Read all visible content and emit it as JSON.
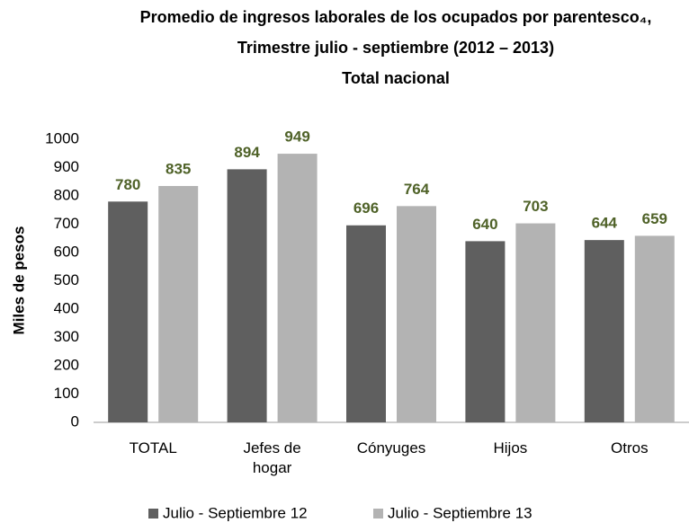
{
  "chart_data": {
    "type": "bar",
    "title": [
      "Promedio de ingresos laborales de los ocupados por parentesco₄,",
      "Trimestre julio - septiembre (2012 – 2013)",
      "Total nacional"
    ],
    "y_label": "Miles de pesos",
    "categories": [
      "TOTAL",
      "Jefes de hogar",
      "Cónyuges",
      "Hijos",
      "Otros"
    ],
    "series": [
      {
        "name": "Julio - Septiembre 12",
        "color": "#5f5f5f",
        "values": [
          780,
          894,
          696,
          640,
          644
        ]
      },
      {
        "name": "Julio - Septiembre 13",
        "color": "#b3b3b3",
        "values": [
          835,
          949,
          764,
          703,
          659
        ]
      }
    ],
    "ylim": [
      0,
      1000
    ],
    "yticks": [
      0,
      100,
      200,
      300,
      400,
      500,
      600,
      700,
      800,
      900,
      1000
    ],
    "grid": false,
    "legend": "bottom",
    "value_label_color": "#4f6228"
  }
}
